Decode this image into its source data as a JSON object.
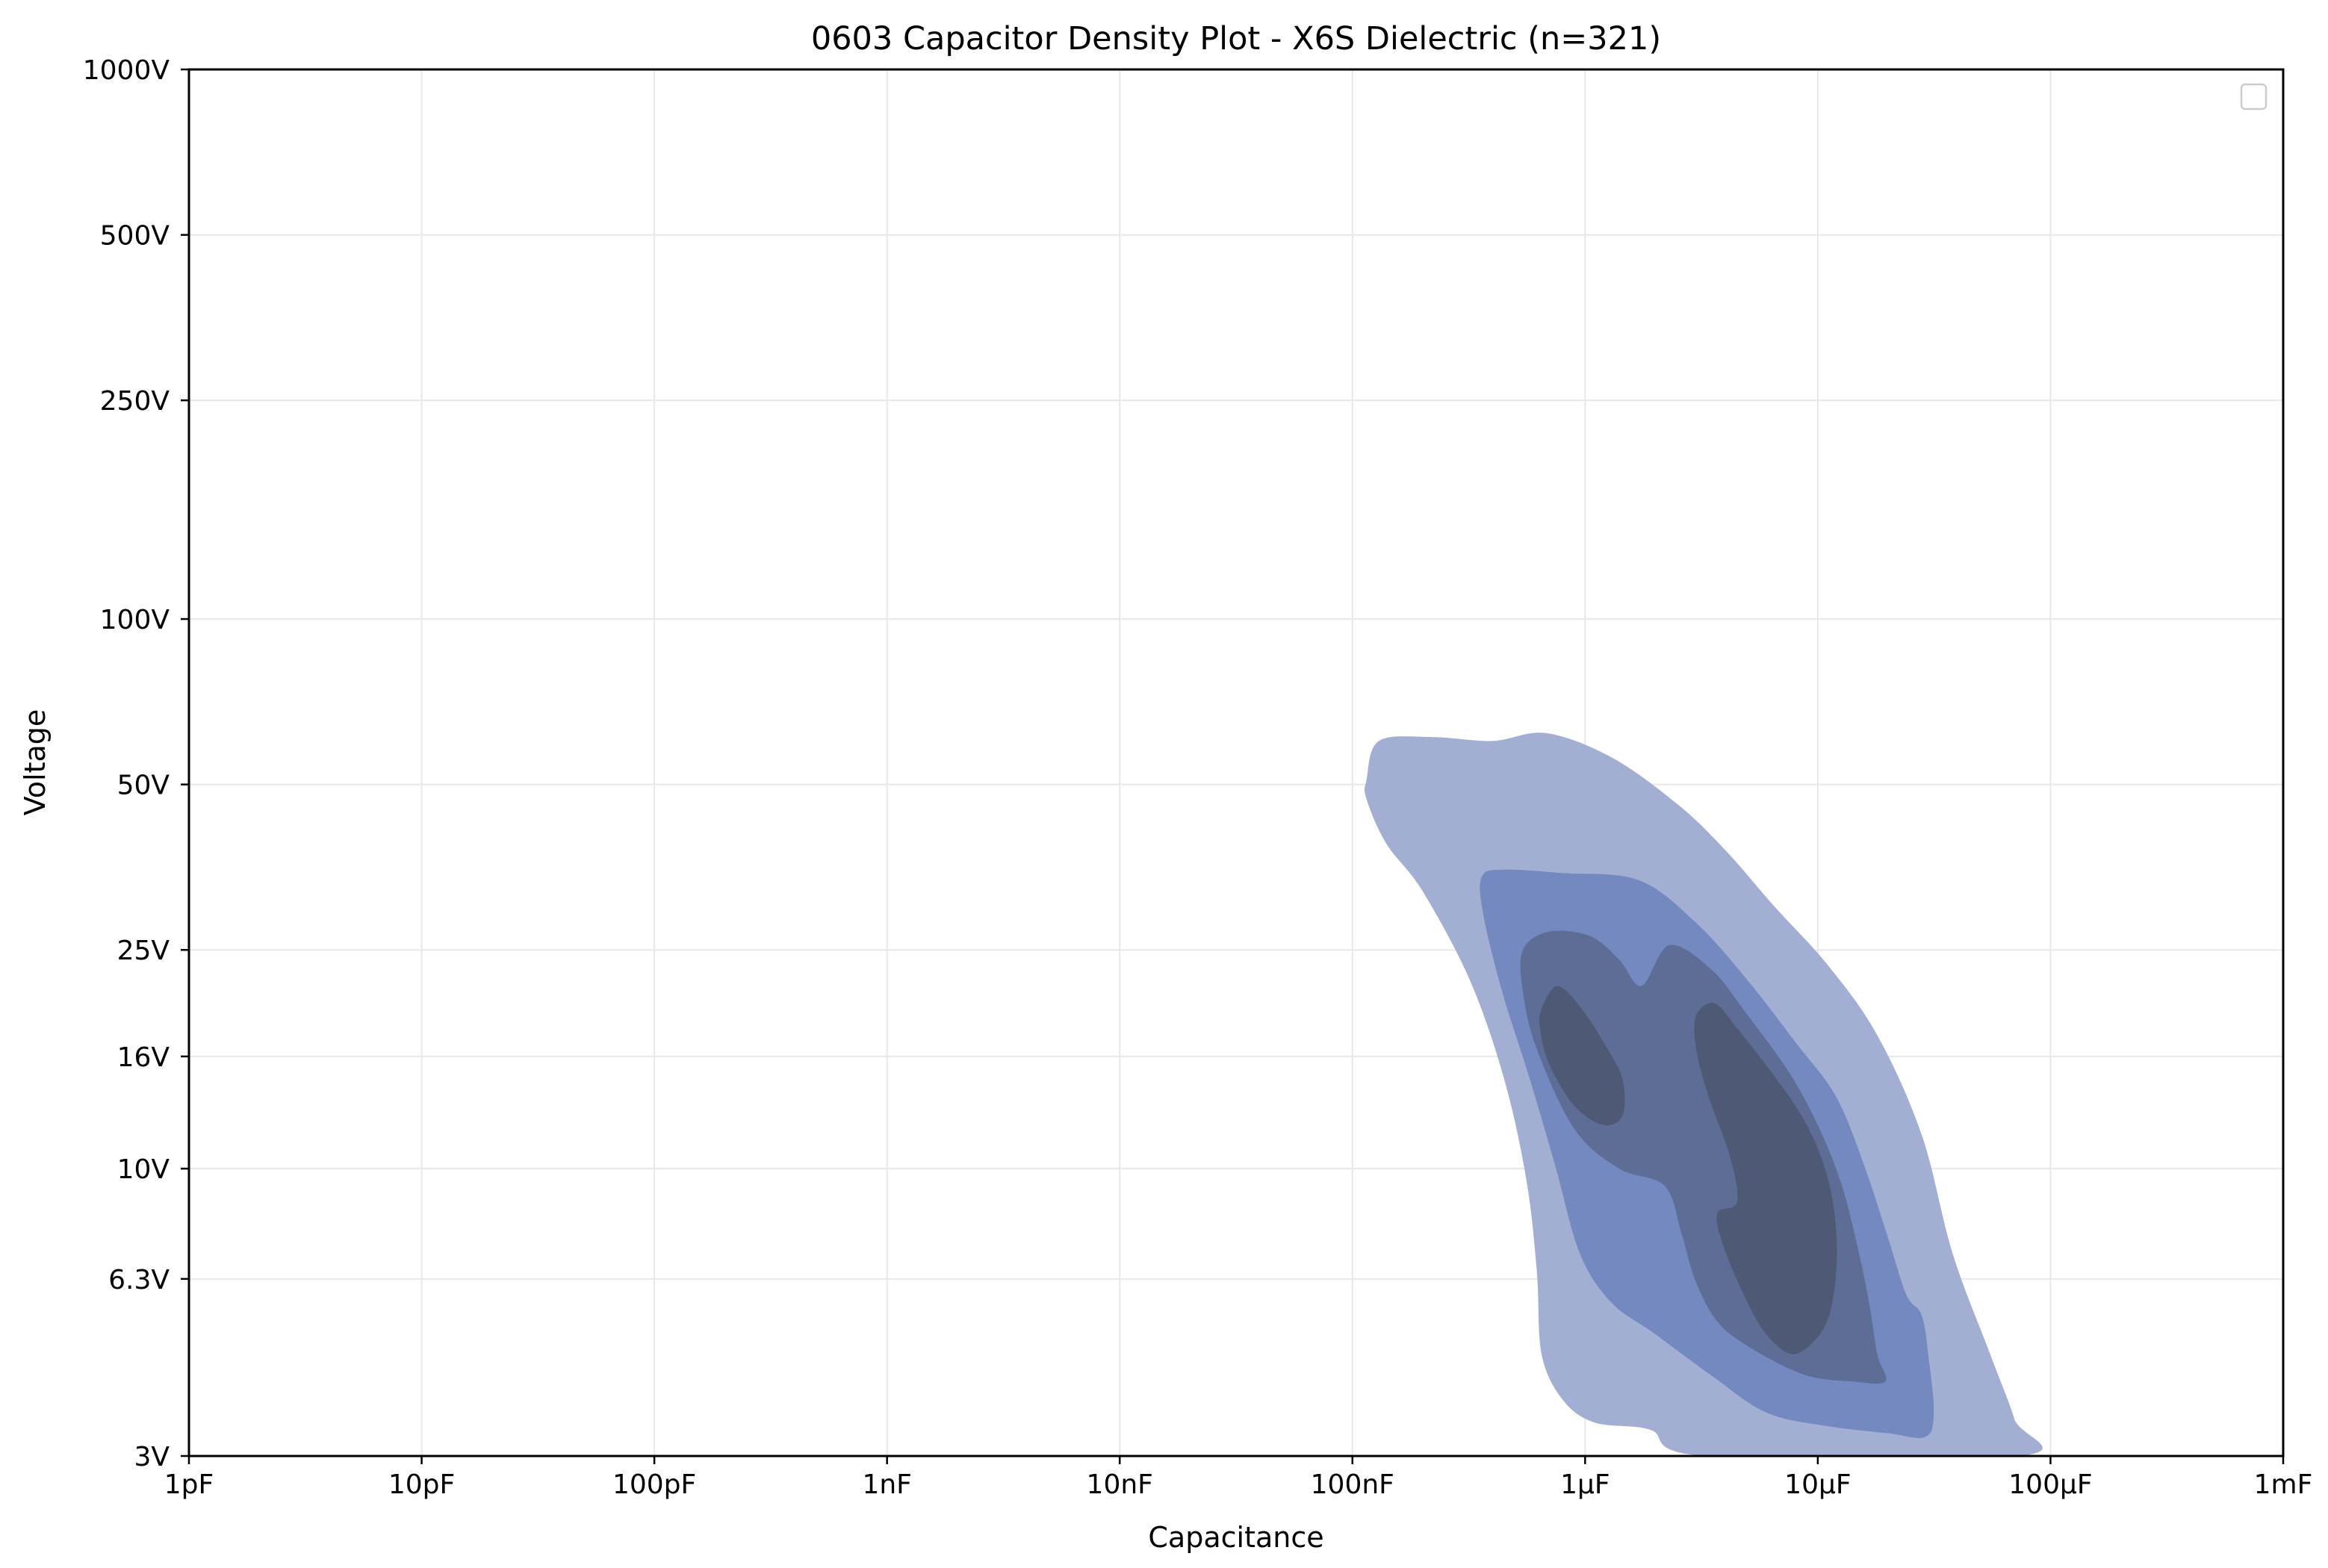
{
  "chart_data": {
    "type": "density",
    "title": "0603 Capacitor Density Plot - X6S Dielectric (n=321)",
    "xlabel": "Capacitance",
    "ylabel": "Voltage",
    "x_scale": "log",
    "y_scale": "log",
    "xlim_farads": [
      1e-12,
      0.001
    ],
    "ylim_volts": [
      3,
      1000
    ],
    "x_ticks": [
      {
        "label": "1pF",
        "value": 1e-12
      },
      {
        "label": "10pF",
        "value": 1e-11
      },
      {
        "label": "100pF",
        "value": 1e-10
      },
      {
        "label": "1nF",
        "value": 1e-09
      },
      {
        "label": "10nF",
        "value": 1e-08
      },
      {
        "label": "100nF",
        "value": 1e-07
      },
      {
        "label": "1µF",
        "value": 1e-06
      },
      {
        "label": "10µF",
        "value": 1e-05
      },
      {
        "label": "100µF",
        "value": 0.0001
      },
      {
        "label": "1mF",
        "value": 0.001
      }
    ],
    "y_ticks": [
      {
        "label": "3V",
        "value": 3
      },
      {
        "label": "6.3V",
        "value": 6.3
      },
      {
        "label": "10V",
        "value": 10
      },
      {
        "label": "16V",
        "value": 16
      },
      {
        "label": "25V",
        "value": 25
      },
      {
        "label": "50V",
        "value": 50
      },
      {
        "label": "100V",
        "value": 100
      },
      {
        "label": "250V",
        "value": 250
      },
      {
        "label": "500V",
        "value": 500
      },
      {
        "label": "1000V",
        "value": 1000
      }
    ],
    "grid": true,
    "legend": {
      "position": "top-right",
      "entries": []
    },
    "contour_levels": [
      {
        "level": 1,
        "color": "#a3afd2",
        "polygons": [
          [
            [
              1.15e-07,
              51
            ],
            [
              1.3e-07,
              60
            ],
            [
              2.2e-07,
              61
            ],
            [
              4e-07,
              60
            ],
            [
              6.8e-07,
              62
            ],
            [
              1.3e-06,
              56
            ],
            [
              2.5e-06,
              46
            ],
            [
              4e-06,
              38
            ],
            [
              6.5e-06,
              30
            ],
            [
              1.1e-05,
              23.5
            ],
            [
              1.8e-05,
              17.5
            ],
            [
              2.8e-05,
              11.5
            ],
            [
              3.8e-05,
              7
            ],
            [
              5.5e-05,
              4.6
            ],
            [
              7e-05,
              3.5
            ],
            [
              7.4e-05,
              3.0
            ],
            [
              3.3e-06,
              3.0
            ],
            [
              1.9e-06,
              3.35
            ],
            [
              1.1e-06,
              3.45
            ],
            [
              8e-07,
              3.8
            ],
            [
              6.5e-07,
              4.6
            ],
            [
              6.2e-07,
              6.5
            ],
            [
              5.6e-07,
              9.5
            ],
            [
              4.5e-07,
              14.5
            ],
            [
              3.2e-07,
              22
            ],
            [
              2e-07,
              32
            ],
            [
              1.4e-07,
              39
            ],
            [
              1.15e-07,
              47
            ]
          ]
        ]
      },
      {
        "level": 2,
        "color": "#7389c0",
        "polygons": [
          [
            [
              3.6e-07,
              34
            ],
            [
              4.5e-07,
              35
            ],
            [
              8e-07,
              34.5
            ],
            [
              1.7e-06,
              33.5
            ],
            [
              3e-06,
              28
            ],
            [
              5e-06,
              22
            ],
            [
              8e-06,
              17
            ],
            [
              1.2e-05,
              13.5
            ],
            [
              1.6e-05,
              10
            ],
            [
              2e-05,
              7.5
            ],
            [
              2.4e-05,
              5.9
            ],
            [
              2.8e-05,
              5.4
            ],
            [
              3e-05,
              4.5
            ],
            [
              3.15e-05,
              3.6
            ],
            [
              2.9e-05,
              3.25
            ],
            [
              2e-05,
              3.3
            ],
            [
              1.1e-05,
              3.4
            ],
            [
              6e-06,
              3.6
            ],
            [
              3.5e-06,
              4.2
            ],
            [
              2e-06,
              5.0
            ],
            [
              1.3e-06,
              5.7
            ],
            [
              9.5e-07,
              7
            ],
            [
              7.5e-07,
              10
            ],
            [
              5.8e-07,
              14.5
            ],
            [
              4.4e-07,
              21
            ],
            [
              3.65e-07,
              29
            ]
          ]
        ]
      },
      {
        "level": 3,
        "color": "#5d6d96",
        "polygons": [
          [
            [
              5.4e-07,
              25
            ],
            [
              7e-07,
              27
            ],
            [
              1.05e-06,
              26.5
            ],
            [
              1.4e-06,
              24
            ],
            [
              1.75e-06,
              21.5
            ],
            [
              2.3e-06,
              25.5
            ],
            [
              3.5e-06,
              23
            ],
            [
              5e-06,
              19
            ],
            [
              7.5e-06,
              15
            ],
            [
              1e-05,
              12
            ],
            [
              1.25e-05,
              9.5
            ],
            [
              1.45e-05,
              7.5
            ],
            [
              1.65e-05,
              5.8
            ],
            [
              1.8e-05,
              4.6
            ],
            [
              1.95e-05,
              4.1
            ],
            [
              1.4e-05,
              4.1
            ],
            [
              9e-06,
              4.2
            ],
            [
              5.7e-06,
              4.6
            ],
            [
              3.8e-06,
              5.2
            ],
            [
              3e-06,
              6.2
            ],
            [
              2.6e-06,
              7.6
            ],
            [
              2.2e-06,
              9.3
            ],
            [
              1.4e-06,
              10
            ],
            [
              9e-07,
              11.8
            ],
            [
              6.2e-07,
              16.5
            ],
            [
              5.4e-07,
              21
            ]
          ]
        ]
      },
      {
        "level": 4,
        "color": "#4e5a75",
        "polygons": [
          [
            [
              6.5e-07,
              19.5
            ],
            [
              7.6e-07,
              21.5
            ],
            [
              9.7e-07,
              19.5
            ],
            [
              1.25e-06,
              16.5
            ],
            [
              1.45e-06,
              14.5
            ],
            [
              1.45e-06,
              12.5
            ],
            [
              1.2e-06,
              12.0
            ],
            [
              9e-07,
              13
            ],
            [
              7e-07,
              15.5
            ],
            [
              6.4e-07,
              18
            ]
          ],
          [
            [
              3e-06,
              19
            ],
            [
              3.6e-06,
              20
            ],
            [
              4.5e-06,
              18
            ],
            [
              6.3e-06,
              15
            ],
            [
              8.5e-06,
              12.5
            ],
            [
              1.05e-05,
              10.3
            ],
            [
              1.18e-05,
              8.3
            ],
            [
              1.2e-05,
              6.5
            ],
            [
              1.08e-05,
              5.2
            ],
            [
              8e-06,
              4.6
            ],
            [
              6e-06,
              5.0
            ],
            [
              4.8e-06,
              5.9
            ],
            [
              3.9e-06,
              7.3
            ],
            [
              3.7e-06,
              8.3
            ],
            [
              4.5e-06,
              8.7
            ],
            [
              4.2e-06,
              10.5
            ],
            [
              3.4e-06,
              13.5
            ],
            [
              3e-06,
              16.5
            ]
          ]
        ]
      }
    ]
  }
}
